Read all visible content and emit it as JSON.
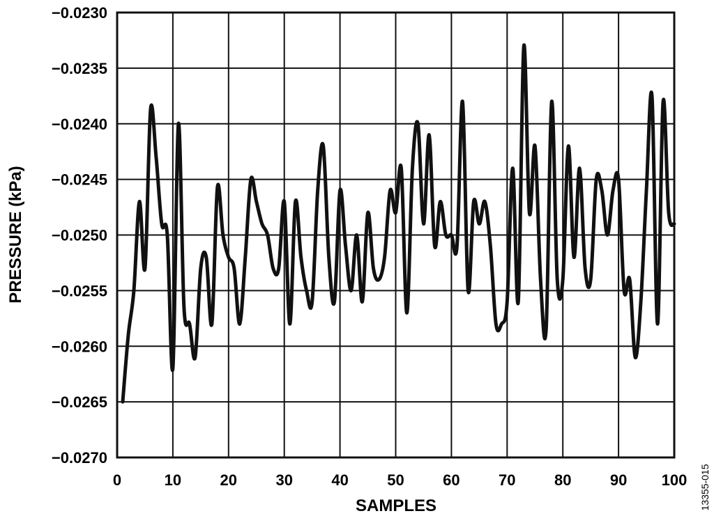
{
  "chart_data": {
    "type": "line",
    "title": "",
    "xlabel": "SAMPLES",
    "ylabel": "PRESSURE (kPa)",
    "xlim": [
      0,
      100
    ],
    "ylim": [
      -0.027,
      -0.023
    ],
    "grid": true,
    "x_ticks": [
      "0",
      "10",
      "20",
      "30",
      "40",
      "50",
      "60",
      "70",
      "80",
      "90",
      "100"
    ],
    "y_ticks": [
      "−0.0230",
      "−0.0235",
      "−0.0240",
      "−0.0245",
      "−0.0250",
      "−0.0255",
      "−0.0260",
      "−0.0265",
      "−0.0270"
    ],
    "series": [
      {
        "color": "#111111",
        "x": [
          1,
          2,
          3,
          4,
          5,
          6,
          7,
          8,
          9,
          10,
          11,
          12,
          13,
          14,
          15,
          16,
          17,
          18,
          19,
          20,
          21,
          22,
          23,
          24,
          25,
          26,
          27,
          28,
          29,
          30,
          31,
          32,
          33,
          34,
          35,
          36,
          37,
          38,
          39,
          40,
          41,
          42,
          43,
          44,
          45,
          46,
          47,
          48,
          49,
          50,
          51,
          52,
          53,
          54,
          55,
          56,
          57,
          58,
          59,
          60,
          61,
          62,
          63,
          64,
          65,
          66,
          67,
          68,
          69,
          70,
          71,
          72,
          73,
          74,
          75,
          76,
          77,
          78,
          79,
          80,
          81,
          82,
          83,
          84,
          85,
          86,
          87,
          88,
          89,
          90,
          91,
          92,
          93,
          94,
          95,
          96,
          97,
          98,
          99,
          100
        ],
        "y": [
          -0.0265,
          -0.0259,
          -0.0255,
          -0.0247,
          -0.0253,
          -0.02387,
          -0.0243,
          -0.0249,
          -0.025,
          -0.0262,
          -0.024,
          -0.02565,
          -0.0258,
          -0.0261,
          -0.0253,
          -0.0252,
          -0.0258,
          -0.02457,
          -0.025,
          -0.0252,
          -0.0253,
          -0.0258,
          -0.0252,
          -0.0245,
          -0.0247,
          -0.0249,
          -0.025,
          -0.0253,
          -0.0253,
          -0.0247,
          -0.0258,
          -0.0247,
          -0.0252,
          -0.0255,
          -0.0256,
          -0.0246,
          -0.0242,
          -0.0252,
          -0.0256,
          -0.0246,
          -0.0251,
          -0.0255,
          -0.025,
          -0.0256,
          -0.0248,
          -0.0253,
          -0.0254,
          -0.0252,
          -0.0246,
          -0.0248,
          -0.0244,
          -0.0257,
          -0.0244,
          -0.024,
          -0.0249,
          -0.0241,
          -0.0251,
          -0.0247,
          -0.025,
          -0.025,
          -0.0251,
          -0.0238,
          -0.0255,
          -0.0247,
          -0.0249,
          -0.0247,
          -0.0251,
          -0.0258,
          -0.0258,
          -0.0256,
          -0.0244,
          -0.0256,
          -0.0233,
          -0.0248,
          -0.0242,
          -0.0254,
          -0.02585,
          -0.0238,
          -0.0254,
          -0.0254,
          -0.0242,
          -0.0252,
          -0.0244,
          -0.0253,
          -0.0254,
          -0.0245,
          -0.0246,
          -0.025,
          -0.0246,
          -0.0245,
          -0.0255,
          -0.0254,
          -0.0261,
          -0.0256,
          -0.0246,
          -0.02375,
          -0.0258,
          -0.0238,
          -0.0248,
          -0.0249
        ]
      }
    ]
  },
  "figure_id": "13355-015"
}
